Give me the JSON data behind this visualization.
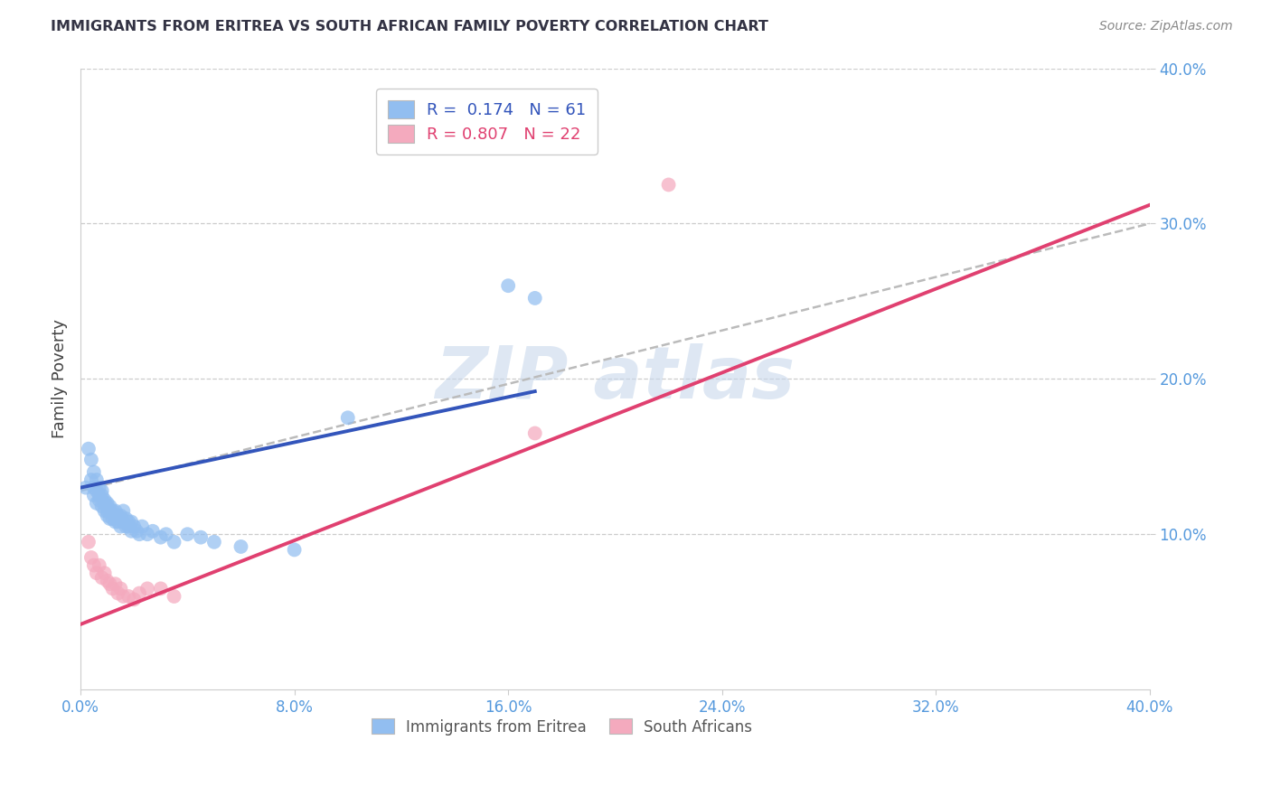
{
  "title": "IMMIGRANTS FROM ERITREA VS SOUTH AFRICAN FAMILY POVERTY CORRELATION CHART",
  "source": "Source: ZipAtlas.com",
  "ylabel": "Family Poverty",
  "xlim": [
    0.0,
    0.4
  ],
  "ylim": [
    0.0,
    0.4
  ],
  "blue_color": "#92BEF0",
  "pink_color": "#F4AABE",
  "blue_line_color": "#3355BB",
  "pink_line_color": "#E04070",
  "dash_color": "#BBBBBB",
  "tick_color": "#5599DD",
  "ylabel_color": "#444444",
  "title_color": "#333344",
  "source_color": "#888888",
  "watermark_color": "#C8D8EC",
  "blue_scatter_x": [
    0.002,
    0.003,
    0.004,
    0.004,
    0.005,
    0.005,
    0.005,
    0.006,
    0.006,
    0.006,
    0.007,
    0.007,
    0.007,
    0.008,
    0.008,
    0.008,
    0.009,
    0.009,
    0.009,
    0.01,
    0.01,
    0.01,
    0.01,
    0.011,
    0.011,
    0.011,
    0.012,
    0.012,
    0.013,
    0.013,
    0.013,
    0.014,
    0.014,
    0.015,
    0.015,
    0.015,
    0.016,
    0.016,
    0.017,
    0.017,
    0.018,
    0.018,
    0.019,
    0.019,
    0.02,
    0.021,
    0.022,
    0.023,
    0.025,
    0.027,
    0.03,
    0.032,
    0.035,
    0.04,
    0.045,
    0.05,
    0.06,
    0.08,
    0.1,
    0.16,
    0.17
  ],
  "blue_scatter_y": [
    0.13,
    0.155,
    0.148,
    0.135,
    0.13,
    0.125,
    0.14,
    0.12,
    0.128,
    0.135,
    0.125,
    0.13,
    0.122,
    0.128,
    0.118,
    0.125,
    0.122,
    0.115,
    0.12,
    0.118,
    0.112,
    0.12,
    0.115,
    0.118,
    0.11,
    0.115,
    0.11,
    0.115,
    0.112,
    0.108,
    0.115,
    0.108,
    0.112,
    0.11,
    0.105,
    0.112,
    0.108,
    0.115,
    0.105,
    0.11,
    0.108,
    0.105,
    0.108,
    0.102,
    0.105,
    0.102,
    0.1,
    0.105,
    0.1,
    0.102,
    0.098,
    0.1,
    0.095,
    0.1,
    0.098,
    0.095,
    0.092,
    0.09,
    0.175,
    0.26,
    0.252
  ],
  "pink_scatter_x": [
    0.003,
    0.004,
    0.005,
    0.006,
    0.007,
    0.008,
    0.009,
    0.01,
    0.011,
    0.012,
    0.013,
    0.014,
    0.015,
    0.016,
    0.018,
    0.02,
    0.022,
    0.025,
    0.03,
    0.035,
    0.17,
    0.22
  ],
  "pink_scatter_y": [
    0.095,
    0.085,
    0.08,
    0.075,
    0.08,
    0.072,
    0.075,
    0.07,
    0.068,
    0.065,
    0.068,
    0.062,
    0.065,
    0.06,
    0.06,
    0.058,
    0.062,
    0.065,
    0.065,
    0.06,
    0.165,
    0.325
  ],
  "blue_line_x": [
    0.0,
    0.17
  ],
  "blue_line_y": [
    0.13,
    0.192
  ],
  "pink_line_x": [
    0.0,
    0.4
  ],
  "pink_line_y": [
    0.042,
    0.312
  ],
  "dash_line_x": [
    0.0,
    0.4
  ],
  "dash_line_y": [
    0.128,
    0.3
  ]
}
